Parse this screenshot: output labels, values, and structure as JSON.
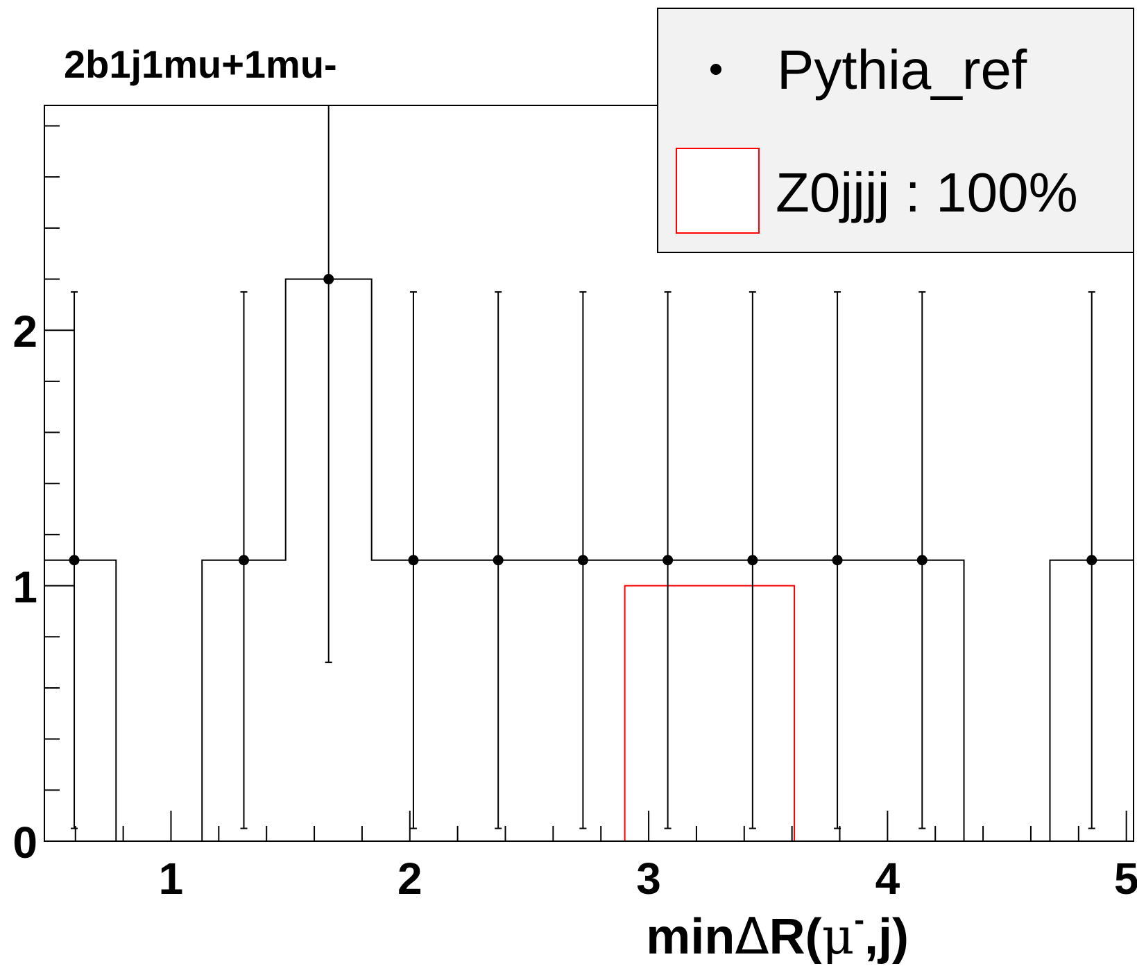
{
  "chart_data": {
    "type": "histogram",
    "title": "2b1j1mu+1mu-",
    "xlabel": "minΔR(μ⁻,j)",
    "xlabel_parts": {
      "pre": "min",
      "delta": "Δ",
      "mid": "R(",
      "mu": "μ",
      "sup": "-",
      "post": ",j)"
    },
    "ylabel": "",
    "xlim": [
      0.47,
      5.03
    ],
    "ylim": [
      0,
      2.88
    ],
    "x_ticks": [
      "1",
      "2",
      "3",
      "4",
      "5"
    ],
    "y_ticks": [
      "0",
      "1",
      "2"
    ],
    "bin_edges": [
      0.42,
      0.77,
      1.13,
      1.48,
      1.84,
      2.19,
      2.55,
      2.9,
      3.26,
      3.61,
      3.97,
      4.32,
      4.68,
      5.03
    ],
    "series": [
      {
        "name": "Pythia_ref",
        "style": "points-with-errors-and-step",
        "color": "#000000",
        "values": [
          1.1,
          0,
          1.1,
          2.2,
          1.1,
          1.1,
          1.1,
          1.1,
          1.1,
          1.1,
          1.1,
          0,
          1.1
        ],
        "errors_low": [
          1.05,
          0,
          1.05,
          1.5,
          1.05,
          1.05,
          1.05,
          1.05,
          1.05,
          1.05,
          1.05,
          0,
          1.05
        ],
        "errors_high": [
          1.05,
          0,
          1.05,
          0.68,
          1.05,
          1.05,
          1.05,
          1.05,
          1.05,
          1.05,
          1.05,
          0,
          1.05
        ]
      },
      {
        "name": "Z0jjjj : 100%",
        "style": "step",
        "color": "#ff0000",
        "values": [
          0,
          0,
          0,
          0,
          0,
          0,
          0,
          1,
          1,
          0,
          0,
          0,
          0
        ]
      }
    ],
    "legend": {
      "position": "top-right",
      "background": "#f2f2f2",
      "entries": [
        "Pythia_ref",
        "Z0jjjj : 100%"
      ]
    }
  }
}
